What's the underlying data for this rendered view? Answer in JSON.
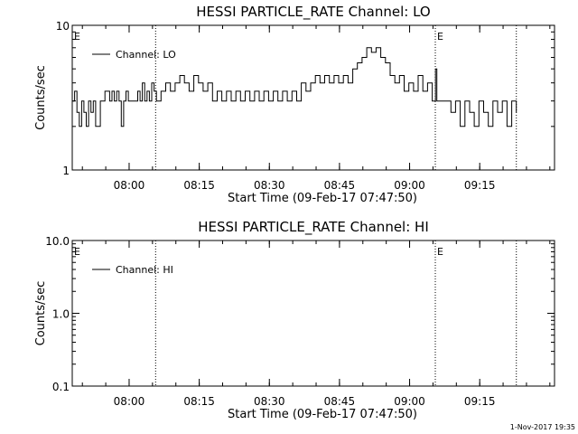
{
  "footer": {
    "timestamp": "1-Nov-2017 19:35"
  },
  "chart_data": [
    {
      "type": "line",
      "title": "HESSI PARTICLE_RATE Channel: LO",
      "xlabel": "Start Time (09-Feb-17 07:47:50)",
      "ylabel": "Counts/sec",
      "y_scale": "log",
      "ylim": [
        1,
        10
      ],
      "xlim": [
        "07:47:50",
        "09:31:00"
      ],
      "x_ticks": [
        "08:00",
        "08:15",
        "08:30",
        "08:45",
        "09:00",
        "09:15"
      ],
      "y_ticks": [
        "1",
        "10"
      ],
      "legend": {
        "position": "top-left",
        "entries": [
          "Channel: LO"
        ]
      },
      "markers": [
        {
          "label": "E",
          "time": "07:47:50"
        },
        {
          "label": "E",
          "time": "09:05:30"
        }
      ],
      "vlines": [
        "08:05:40",
        "09:05:30",
        "09:22:50"
      ],
      "series": [
        {
          "name": "Channel: LO",
          "x_minutes": [
            0,
            0.5,
            1,
            1.5,
            2,
            2.5,
            3,
            3.5,
            4,
            4.5,
            5,
            6,
            7,
            8,
            8.5,
            9,
            9.5,
            10,
            10.5,
            11,
            11.5,
            12,
            13,
            14,
            14.5,
            15,
            15.5,
            16,
            16.5,
            17,
            17.5,
            18,
            19,
            20,
            21,
            22,
            23,
            24,
            25,
            26,
            27,
            28,
            29,
            30,
            31,
            32,
            33,
            34,
            35,
            36,
            37,
            38,
            39,
            40,
            41,
            42,
            43,
            44,
            45,
            46,
            47,
            48,
            49,
            50,
            51,
            52,
            53,
            54,
            55,
            56,
            57,
            58,
            59,
            60,
            61,
            62,
            63,
            64,
            65,
            66,
            67,
            68,
            69,
            70,
            71,
            72,
            73,
            74,
            75,
            76,
            77,
            77.7,
            78,
            79,
            80,
            81,
            82,
            83,
            84,
            85,
            86,
            87,
            88,
            89,
            90,
            91,
            92,
            93,
            94,
            95
          ],
          "y": [
            3,
            3.5,
            2.5,
            2,
            3,
            2.5,
            2,
            3,
            2.5,
            3,
            2,
            3,
            3.5,
            3,
            3.5,
            3,
            3.5,
            3,
            2,
            3,
            3.5,
            3,
            3,
            3.5,
            3,
            4,
            3,
            3.5,
            3,
            4,
            3.5,
            3,
            3.5,
            4,
            3.5,
            4,
            4.5,
            4,
            3.5,
            4.5,
            4,
            3.5,
            4,
            3,
            3.5,
            3,
            3.5,
            3,
            3.5,
            3,
            3.5,
            3,
            3.5,
            3,
            3.5,
            3,
            3.5,
            3,
            3.5,
            3,
            3.5,
            3,
            4,
            3.5,
            4,
            4.5,
            4,
            4.5,
            4,
            4.5,
            4,
            4.5,
            4,
            5,
            5.5,
            6,
            7,
            6.5,
            7,
            6,
            5.5,
            4.5,
            4,
            4.5,
            3.5,
            4,
            3.5,
            4.5,
            3.5,
            4,
            3,
            5,
            3,
            3,
            3,
            2.5,
            3,
            2,
            3,
            2.5,
            2,
            3,
            2.5,
            2,
            3,
            2.5,
            3,
            2,
            3,
            2.5
          ]
        }
      ]
    },
    {
      "type": "line",
      "title": "HESSI PARTICLE_RATE Channel: HI",
      "xlabel": "Start Time (09-Feb-17 07:47:50)",
      "ylabel": "Counts/sec",
      "y_scale": "log",
      "ylim": [
        0.1,
        10
      ],
      "xlim": [
        "07:47:50",
        "09:31:00"
      ],
      "x_ticks": [
        "08:00",
        "08:15",
        "08:30",
        "08:45",
        "09:00",
        "09:15"
      ],
      "y_ticks": [
        "0.1",
        "1.0",
        "10.0"
      ],
      "legend": {
        "position": "top-left",
        "entries": [
          "Channel: HI"
        ]
      },
      "markers": [
        {
          "label": "E",
          "time": "07:47:50"
        },
        {
          "label": "E",
          "time": "09:05:30"
        }
      ],
      "vlines": [
        "08:05:40",
        "09:05:30",
        "09:22:50"
      ],
      "series": [
        {
          "name": "Channel: HI",
          "x_minutes": [],
          "y": []
        }
      ]
    }
  ]
}
